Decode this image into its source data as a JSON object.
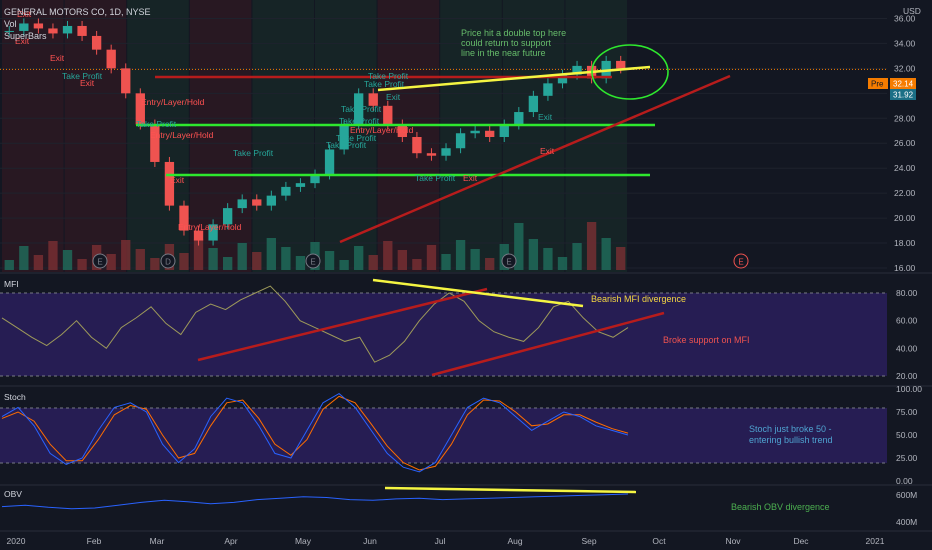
{
  "header": {
    "symbol_title": "GENERAL MOTORS CO, 1D, NYSE",
    "vol_label": "Vol",
    "study_label": "SuperBars",
    "currency": "USD"
  },
  "colors": {
    "background": "#131722",
    "up": "#26a69a",
    "down": "#ef5350",
    "support_green": "#2ee82e",
    "trend_red": "#b71c1c",
    "trend_yellow": "#f5f542",
    "mfi_line": "#9e9a5a",
    "stoch_k": "#2962ff",
    "stoch_d": "#ff6d00",
    "obv_line": "#2962ff",
    "oscillator_band": "#2a1e5c",
    "pre_badge": "#f57c00",
    "last_badge": "#1b6f86"
  },
  "price_axis": {
    "ticks": [
      "36.00",
      "34.00",
      "32.00",
      "30.00",
      "28.00",
      "26.00",
      "24.00",
      "22.00",
      "20.00",
      "18.00",
      "16.00"
    ],
    "pre_label": "Pre",
    "pre_value": "32.14",
    "last_value": "31.92"
  },
  "x_axis": {
    "labels": [
      "2020",
      "Feb",
      "Mar",
      "Apr",
      "May",
      "Jun",
      "Jul",
      "Aug",
      "Sep",
      "Oct",
      "Nov",
      "Dec",
      "2021"
    ]
  },
  "events": {
    "earnings_label": "E",
    "dividend_label": "D"
  },
  "signal_labels": {
    "exit": "Exit",
    "take_profit": "Take Profit",
    "entry": "Entry/Layer/Hold",
    "entry_1": "Entry/Layer/Hold",
    "entry_2": "Entry/Layer/Hold",
    "entry_3": "Entry/Layer/Hold",
    "entry_4": "Entry/Layer/Hold",
    "take_profit_1": "Take Profit",
    "take_profit_2": "Take Profit",
    "take_profit_3": "Take Profit",
    "take_profit_4": "Take Profit",
    "take_profit_5": "Take Profit",
    "take_profit_6": "Take Profit",
    "take_profit_7": "Take Profit",
    "take_profit_8": "Take Profit",
    "take_profit_9": "Take Profit",
    "take_profit_10": "Take Profit",
    "exit_1": "Exit",
    "exit_2": "Exit",
    "exit_3": "Exit",
    "exit_4": "Exit",
    "exit_5": "Exit",
    "exit_6": "Exit",
    "exit_7": "Exit",
    "exit_8": "Exit"
  },
  "annotations": {
    "double_top_line1": "Price hit a double top here",
    "double_top_line2": "could return to support",
    "double_top_line3": "line in the near future",
    "mfi_divergence": "Bearish MFI divergence",
    "mfi_support": "Broke support on MFI",
    "stoch_line1": "Stoch just broke 50 -",
    "stoch_line2": "entering bullish trend",
    "obv_divergence": "Bearish OBV divergence"
  },
  "mfi": {
    "label": "MFI",
    "ticks": [
      "80.00",
      "60.00",
      "40.00",
      "20.00"
    ]
  },
  "stoch": {
    "label": "Stoch",
    "ticks": [
      "100.00",
      "75.00",
      "50.00",
      "25.00",
      "0.00"
    ]
  },
  "obv": {
    "label": "OBV",
    "ticks": [
      "600M",
      "400M"
    ]
  },
  "chart_data": [
    {
      "type": "candlestick",
      "title": "GENERAL MOTORS CO, 1D, NYSE",
      "ylim": [
        16,
        37
      ],
      "month_labels": [
        "2020",
        "Feb",
        "Mar",
        "Apr",
        "May",
        "Jun",
        "Jul",
        "Aug",
        "Sep"
      ],
      "close_approx": [
        35.0,
        35.6,
        35.2,
        34.8,
        35.4,
        34.6,
        33.5,
        32.0,
        30.0,
        27.5,
        24.5,
        21.0,
        19.0,
        18.2,
        19.5,
        20.8,
        21.5,
        21.0,
        21.8,
        22.5,
        22.8,
        23.5,
        25.5,
        27.5,
        30.0,
        29.0,
        27.5,
        26.5,
        25.2,
        25.0,
        25.6,
        26.8,
        27.0,
        26.5,
        27.5,
        28.5,
        29.8,
        30.8,
        31.5,
        32.2,
        31.2,
        32.6,
        32.0
      ],
      "support_levels": [
        28.5,
        24.0
      ],
      "resistance_level": 32.8,
      "last_price": 31.92,
      "premarket_price": 32.14
    },
    {
      "type": "line",
      "title": "MFI",
      "ylim": [
        20,
        100
      ],
      "bands": [
        20,
        80
      ],
      "values_approx": [
        62,
        55,
        48,
        42,
        50,
        60,
        48,
        40,
        55,
        62,
        70,
        58,
        50,
        66,
        72,
        68,
        75,
        80,
        85,
        74,
        60,
        55,
        50,
        45,
        48,
        30,
        35,
        45,
        60,
        72,
        80,
        74,
        60,
        52,
        48,
        45,
        55,
        70,
        74,
        62,
        52,
        48,
        55
      ]
    },
    {
      "type": "line",
      "title": "Stoch",
      "ylim": [
        0,
        100
      ],
      "bands": [
        20,
        80
      ],
      "series": [
        {
          "name": "%K",
          "values_approx": [
            70,
            80,
            60,
            30,
            18,
            25,
            55,
            80,
            85,
            75,
            40,
            20,
            35,
            70,
            90,
            85,
            60,
            30,
            25,
            55,
            85,
            95,
            80,
            55,
            30,
            15,
            10,
            20,
            50,
            80,
            90,
            85,
            70,
            55,
            65,
            75,
            70,
            60,
            55,
            50
          ]
        },
        {
          "name": "%D",
          "values_approx": [
            68,
            75,
            65,
            40,
            22,
            22,
            45,
            72,
            82,
            78,
            50,
            25,
            30,
            60,
            85,
            88,
            68,
            40,
            28,
            45,
            78,
            92,
            85,
            62,
            38,
            20,
            12,
            16,
            40,
            72,
            88,
            87,
            75,
            60,
            62,
            72,
            72,
            64,
            57,
            52
          ]
        }
      ]
    },
    {
      "type": "line",
      "title": "OBV",
      "y_ticks": [
        "600M",
        "400M"
      ],
      "values_approx_millions": [
        510,
        520,
        505,
        495,
        500,
        520,
        540,
        555,
        545,
        530,
        540,
        560,
        570,
        580,
        575,
        560,
        555,
        565,
        570,
        560,
        565,
        570,
        575,
        580,
        585,
        590,
        595,
        600
      ]
    }
  ]
}
